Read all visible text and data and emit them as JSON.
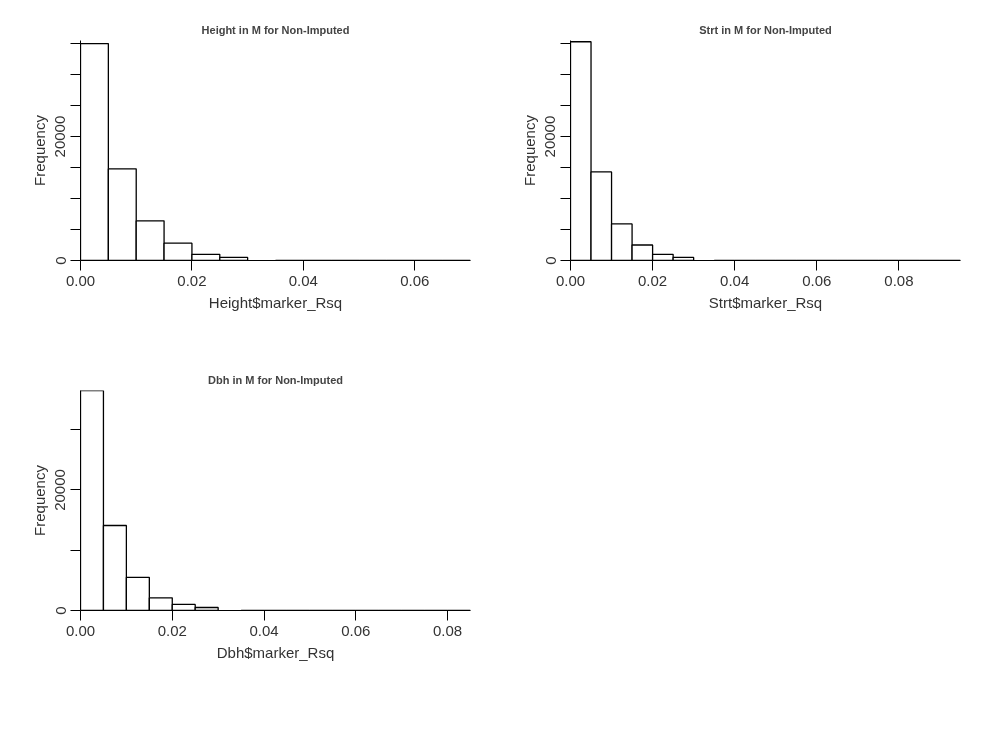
{
  "chart_data": [
    {
      "type": "histogram",
      "title": "Height in M for Non-Imputed",
      "xlabel": "Height$marker_Rsq",
      "ylabel": "Frequency",
      "bins": [
        0,
        0.005,
        0.01,
        0.015,
        0.02,
        0.025,
        0.03,
        0.035,
        0.04,
        0.045,
        0.05,
        0.055,
        0.06,
        0.065,
        0.07
      ],
      "values": [
        35000,
        14800,
        6400,
        2800,
        1000,
        500,
        null,
        0,
        0,
        0,
        0,
        0,
        0,
        0
      ],
      "color": "#ffffff",
      "xlim": [
        0,
        0.07
      ],
      "xticks": [
        {
          "value": 0,
          "label": "0.00"
        },
        {
          "value": 0.02,
          "label": "0.02"
        },
        {
          "value": 0.04,
          "label": "0.04"
        },
        {
          "value": 0.06,
          "label": "0.06"
        }
      ],
      "ylim": [
        0,
        35500
      ],
      "yticks": [
        0,
        {
          "value": 5000,
          "label": null
        },
        {
          "value": 10000,
          "label": null
        },
        {
          "value": 15000,
          "label": null
        },
        20000,
        {
          "value": 25000,
          "label": null
        },
        {
          "value": 30000,
          "label": null
        },
        {
          "value": 35000,
          "label": null
        }
      ],
      "grid": false
    },
    {
      "type": "histogram",
      "title": "Strt in M for Non-Imputed",
      "xlabel": "Strt$marker_Rsq",
      "ylabel": "Frequency",
      "bins": [
        0,
        0.005,
        0.01,
        0.015,
        0.02,
        0.025,
        0.03,
        0.035,
        0.04,
        0.045,
        0.05,
        0.055,
        0.06,
        0.065,
        0.07,
        0.075,
        0.08,
        0.085,
        0.09,
        0.095
      ],
      "values": [
        35300,
        14300,
        5900,
        2500,
        1000,
        500,
        null,
        0,
        0,
        0,
        0,
        0,
        0,
        0,
        0,
        0,
        0,
        0,
        0
      ],
      "color": "#ffffff",
      "xlim": [
        0,
        0.095
      ],
      "xticks": [
        {
          "value": 0,
          "label": "0.00"
        },
        {
          "value": 0.02,
          "label": "0.02"
        },
        {
          "value": 0.04,
          "label": "0.04"
        },
        {
          "value": 0.06,
          "label": "0.06"
        },
        {
          "value": 0.08,
          "label": "0.08"
        }
      ],
      "ylim": [
        0,
        35500
      ],
      "yticks": [
        0,
        {
          "value": 5000,
          "label": null
        },
        {
          "value": 10000,
          "label": null
        },
        {
          "value": 15000,
          "label": null
        },
        20000,
        {
          "value": 25000,
          "label": null
        },
        {
          "value": 30000,
          "label": null
        },
        {
          "value": 35000,
          "label": null
        }
      ],
      "grid": false
    },
    {
      "type": "histogram",
      "title": "Dbh in M for Non-Imputed",
      "xlabel": "Dbh$marker_Rsq",
      "ylabel": "Frequency",
      "bins": [
        0,
        0.005,
        0.01,
        0.015,
        0.02,
        0.025,
        0.03,
        0.035,
        0.04,
        0.045,
        0.05,
        0.055,
        0.06,
        0.065,
        0.07,
        0.075,
        0.08,
        0.085
      ],
      "values": [
        36500,
        14100,
        5500,
        2100,
        1000,
        500,
        null,
        0,
        0,
        0,
        0,
        0,
        0,
        0,
        0,
        0,
        0
      ],
      "color": "#ffffff",
      "xlim": [
        0,
        0.085
      ],
      "xticks": [
        {
          "value": 0,
          "label": "0.00"
        },
        {
          "value": 0.02,
          "label": "0.02"
        },
        {
          "value": 0.04,
          "label": "0.04"
        },
        {
          "value": 0.06,
          "label": "0.06"
        },
        {
          "value": 0.08,
          "label": "0.08"
        }
      ],
      "ylim": [
        0,
        36500
      ],
      "yticks": [
        0,
        {
          "value": 10000,
          "label": null
        },
        20000,
        {
          "value": 30000,
          "label": null
        }
      ],
      "grid": false
    }
  ]
}
